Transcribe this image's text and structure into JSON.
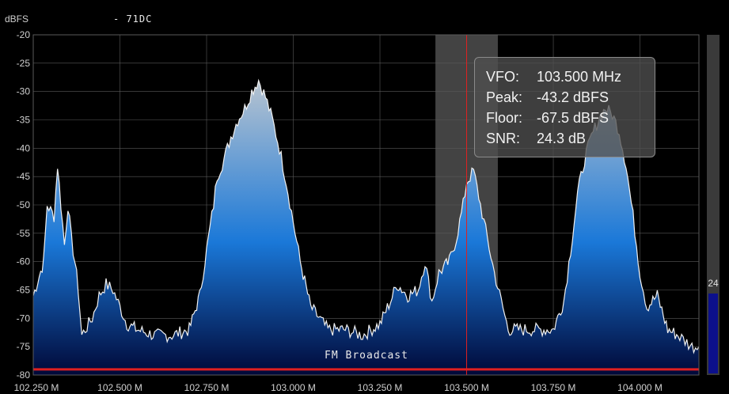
{
  "header": {
    "unit_label": "dBFS",
    "marker_text": "- 71DC"
  },
  "tooltip": {
    "rows": [
      {
        "key": "VFO:",
        "value": "103.500 MHz"
      },
      {
        "key": "Peak:",
        "value": "-43.2 dBFS"
      },
      {
        "key": "Floor:",
        "value": "-67.5 dBFS"
      },
      {
        "key": "SNR:",
        "value": "24.3 dB"
      }
    ]
  },
  "band_label": "FM Broadcast",
  "snr_meter": {
    "value_label": "24",
    "level_fraction": 0.24
  },
  "colors": {
    "trace": "#f0f0f0",
    "vfo_line": "#e02020",
    "band_line": "#e02020",
    "fill_top": "#b8c4d0",
    "fill_mid": "#1a78d8",
    "fill_bottom": "#000838",
    "passband": "#5a5a5a",
    "grid": "#5a5a5a"
  },
  "chart_data": {
    "type": "area",
    "xlabel": "",
    "ylabel": "dBFS",
    "xlim": [
      102.25,
      104.17
    ],
    "ylim": [
      -80,
      -20
    ],
    "xticks": [
      102.25,
      102.5,
      102.75,
      103.0,
      103.25,
      103.5,
      103.75,
      104.0
    ],
    "xtick_labels": [
      "102.250 M",
      "102.500 M",
      "102.750 M",
      "103.000 M",
      "103.250 M",
      "103.500 M",
      "103.750 M",
      "104.000 M"
    ],
    "yticks": [
      -20,
      -25,
      -30,
      -35,
      -40,
      -45,
      -50,
      -55,
      -60,
      -65,
      -70,
      -75,
      -80
    ],
    "grid": true,
    "vfo_mhz": 103.5,
    "passband_mhz": [
      103.41,
      103.59
    ],
    "band_line_dbfs": -79,
    "series": [
      {
        "x": [
          102.25,
          102.28,
          102.29,
          102.31,
          102.32,
          102.33,
          102.34,
          102.35,
          102.36,
          102.37,
          102.38,
          102.39,
          102.4,
          102.42,
          102.44,
          102.46,
          102.48,
          102.5,
          102.52,
          102.55,
          102.6,
          102.65,
          102.7,
          102.73,
          102.75,
          102.77,
          102.78,
          102.8,
          102.82,
          102.84,
          102.86,
          102.88,
          102.89,
          102.9,
          102.92,
          102.94,
          102.96,
          102.98,
          103.0,
          103.02,
          103.05,
          103.1,
          103.15,
          103.2,
          103.25,
          103.28,
          103.3,
          103.33,
          103.36,
          103.38,
          103.4,
          103.42,
          103.45,
          103.47,
          103.49,
          103.5,
          103.52,
          103.54,
          103.56,
          103.58,
          103.6,
          103.62,
          103.65,
          103.7,
          103.75,
          103.78,
          103.8,
          103.82,
          103.84,
          103.86,
          103.88,
          103.9,
          103.92,
          103.94,
          103.96,
          103.98,
          104.0,
          104.02,
          104.05,
          104.08,
          104.11,
          104.13,
          104.15,
          104.17
        ],
        "y": [
          -66,
          -60,
          -50,
          -52,
          -43,
          -50,
          -57,
          -50,
          -56,
          -60,
          -65,
          -73,
          -72,
          -70,
          -66,
          -64,
          -65,
          -68,
          -71,
          -72,
          -73,
          -73,
          -72,
          -66,
          -58,
          -50,
          -45,
          -42,
          -38,
          -35,
          -33,
          -30,
          -29,
          -28,
          -31,
          -35,
          -40,
          -46,
          -53,
          -60,
          -68,
          -72,
          -72,
          -73,
          -71,
          -67,
          -64,
          -66,
          -65,
          -60,
          -67,
          -62,
          -60,
          -56,
          -50,
          -46,
          -44,
          -50,
          -56,
          -62,
          -67,
          -72,
          -72,
          -72,
          -72,
          -67,
          -58,
          -48,
          -42,
          -38,
          -35,
          -33,
          -34,
          -37,
          -43,
          -52,
          -62,
          -68,
          -66,
          -72,
          -73,
          -74,
          -75,
          -75
        ]
      }
    ]
  }
}
